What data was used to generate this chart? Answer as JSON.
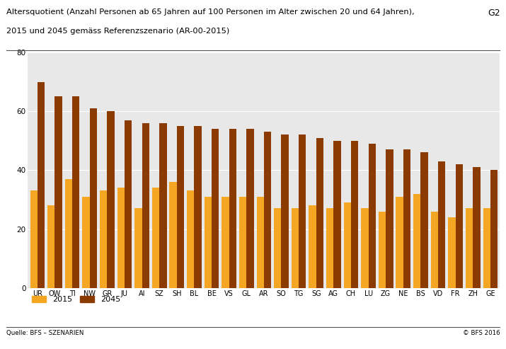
{
  "title_line1": "Altersquotient (Anzahl Personen ab 65 Jahren auf 100 Personen im Alter zwischen 20 und 64 Jahren),",
  "title_line2": "2015 und 2045 gemäss Referenzszenario (AR-00-2015)",
  "label_g2": "G2",
  "categories": [
    "UR",
    "OW",
    "TI",
    "NW",
    "GR",
    "JU",
    "AI",
    "SZ",
    "SH",
    "BL",
    "BE",
    "VS",
    "GL",
    "AR",
    "SO",
    "TG",
    "SG",
    "AG",
    "CH",
    "LU",
    "ZG",
    "NE",
    "BS",
    "VD",
    "FR",
    "ZH",
    "GE"
  ],
  "values_2015": [
    33,
    28,
    37,
    31,
    33,
    34,
    27,
    34,
    36,
    33,
    31,
    31,
    31,
    31,
    27,
    27,
    28,
    27,
    29,
    27,
    26,
    31,
    32,
    26,
    24,
    27,
    27
  ],
  "values_2045": [
    70,
    65,
    65,
    61,
    60,
    57,
    56,
    56,
    55,
    55,
    54,
    54,
    54,
    53,
    52,
    52,
    51,
    50,
    50,
    49,
    47,
    47,
    46,
    43,
    42,
    41,
    40
  ],
  "color_2015": "#F5A623",
  "color_2045": "#8B3A00",
  "ylim": [
    0,
    80
  ],
  "yticks": [
    0,
    20,
    40,
    60,
    80
  ],
  "source_left": "Quelle: BFS – SZENARIEN",
  "source_right": "© BFS 2016",
  "legend_2015": "2015",
  "legend_2045": "2045",
  "background_color": "#E8E8E8",
  "bar_width": 0.42,
  "figsize": [
    7.15,
    4.93
  ],
  "dpi": 100
}
